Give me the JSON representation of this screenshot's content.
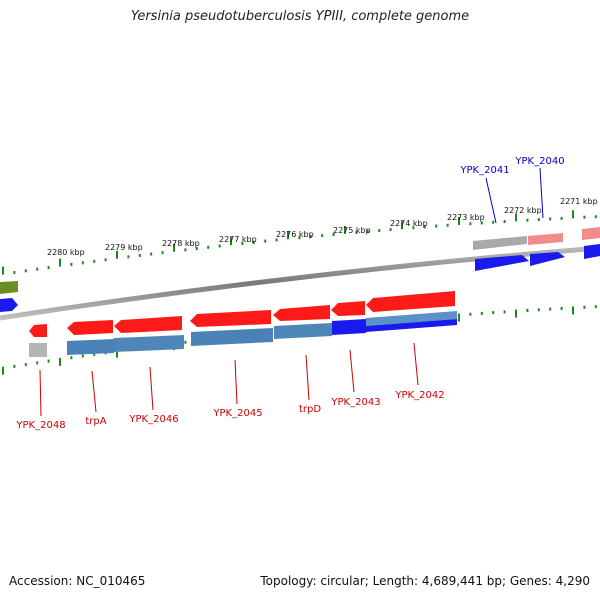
{
  "title": "Yersinia pseudotuberculosis YPIII, complete genome",
  "footer": {
    "accession": "Accession: NC_010465",
    "summary": "Topology: circular; Length: 4,689,441 bp; Genes: 4,290"
  },
  "colors": {
    "gene_red": "#ff1a1a",
    "gene_blue_dark": "#1a1aee",
    "cds_steelblue": "#4a82b8",
    "gray": "#a9a9a9",
    "pink": "#f28c8c",
    "olive": "#6b8e23",
    "tick_green": "#1a8a1a",
    "label_red": "#cc0000",
    "label_blue": "#0000cc",
    "backbone": "#888888"
  },
  "scale_labels": [
    "2280 kbp",
    "2279 kbp",
    "2278 kbp",
    "2277 kbp",
    "2276 kbp",
    "2275 kbp",
    "2274 kbp",
    "2273 kbp",
    "2272 kbp",
    "2271 kbp"
  ],
  "genes_top": [
    "YPK_2041",
    "YPK_2040"
  ],
  "genes_bottom": [
    "YPK_2048",
    "trpA",
    "YPK_2046",
    "YPK_2045",
    "trpD",
    "YPK_2043",
    "YPK_2042"
  ]
}
